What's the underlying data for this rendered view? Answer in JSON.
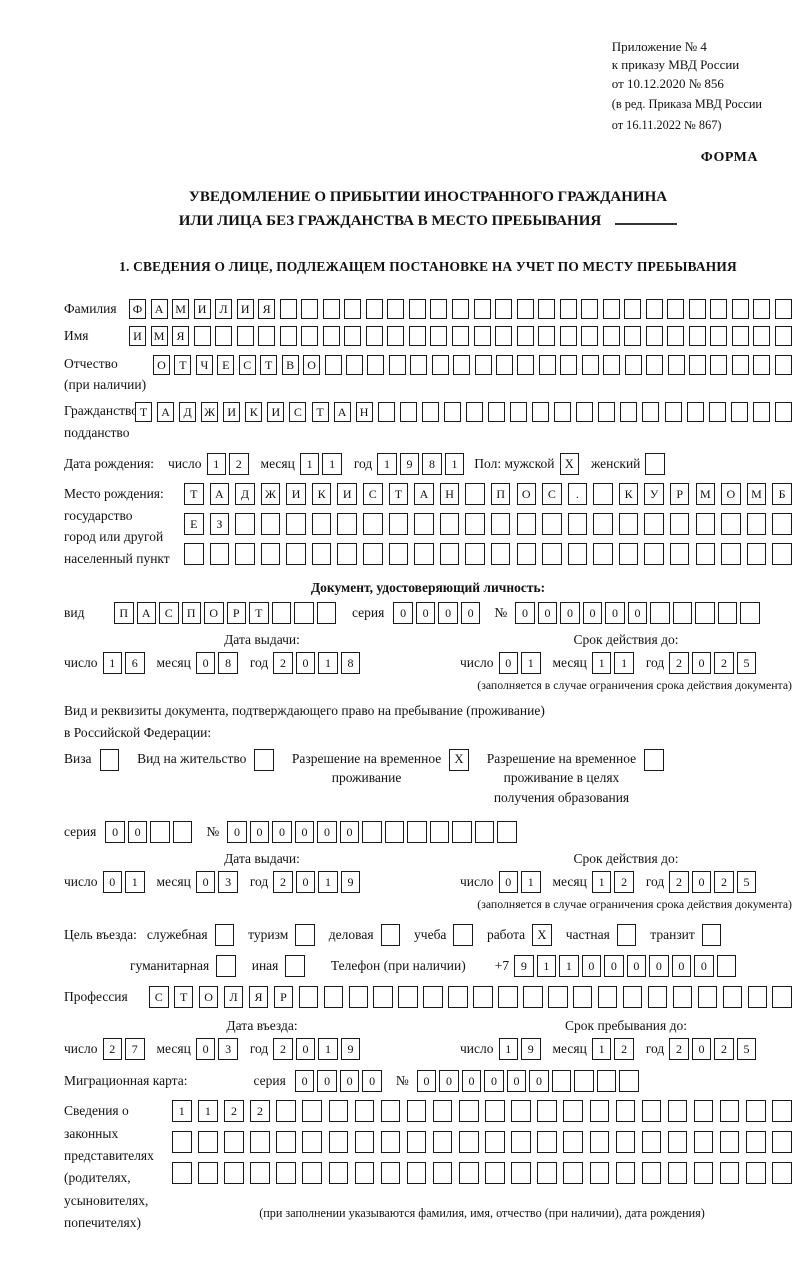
{
  "annex": {
    "lines": [
      "Приложение № 4",
      "к приказу МВД России",
      "от 10.12.2020 № 856"
    ],
    "sub_lines": [
      "(в ред. Приказа МВД России",
      "от 16.11.2022 № 867)"
    ],
    "form_label": "ФОРМА"
  },
  "title": {
    "line1": "УВЕДОМЛЕНИЕ О ПРИБЫТИИ ИНОСТРАННОГО ГРАЖДАНИНА",
    "line2": "ИЛИ ЛИЦА БЕЗ ГРАЖДАНСТВА В МЕСТО ПРЕБЫВАНИЯ"
  },
  "section1_heading": "1. СВЕДЕНИЯ О ЛИЦЕ, ПОДЛЕЖАЩЕМ ПОСТАНОВКЕ НА УЧЕТ ПО МЕСТУ ПРЕБЫВАНИЯ",
  "date_labels": {
    "day": "число",
    "month": "месяц",
    "year": "год"
  },
  "fields": {
    "surname": {
      "label": "Фамилия",
      "value": "ФАМИЛИЯ",
      "count": 31
    },
    "name": {
      "label": "Имя",
      "value": "ИМЯ",
      "count": 31
    },
    "patronymic": {
      "label": "Отчество",
      "label2": "(при наличии)",
      "value": "ОТЧЕСТВО",
      "count": 30
    },
    "citizenship": {
      "label": "Гражданство,",
      "label2": "подданство",
      "value": "ТАДЖИКИСТАН",
      "count": 30
    }
  },
  "birth_date": {
    "label": "Дата рождения:",
    "day": {
      "value": "12",
      "count": 2
    },
    "month": {
      "value": "11",
      "count": 2
    },
    "year": {
      "value": "1981",
      "count": 4
    },
    "sex_label": "Пол: мужской",
    "male_mark": "X",
    "female_label": "женский",
    "female_mark": ""
  },
  "birth_place": {
    "labels": [
      "Место рождения:",
      "государство",
      "город или другой",
      "населенный пункт"
    ],
    "row1": {
      "value": "ТАДЖИКИСТАН ПОС. КУРМОМБ",
      "count": 24
    },
    "row2": {
      "value": "ЕЗ",
      "count": 24
    },
    "row3": {
      "value": "",
      "count": 24
    }
  },
  "id_doc": {
    "heading": "Документ, удостоверяющий личность:",
    "kind_label": "вид",
    "kind": {
      "value": "ПАСПОРТ",
      "count": 10
    },
    "series_label": "серия",
    "series": {
      "value": "0000",
      "count": 4
    },
    "number_label": "№",
    "number": {
      "value": "000000",
      "count": 11
    },
    "issue_heading": "Дата выдачи:",
    "issue_day": {
      "value": "16",
      "count": 2
    },
    "issue_month": {
      "value": "08",
      "count": 2
    },
    "issue_year": {
      "value": "2018",
      "count": 4
    },
    "valid_heading": "Срок действия до:",
    "valid_day": {
      "value": "01",
      "count": 2
    },
    "valid_month": {
      "value": "11",
      "count": 2
    },
    "valid_year": {
      "value": "2025",
      "count": 4
    }
  },
  "shared": {
    "validity_footnote": "(заполняется в случае ограничения срока действия документа)"
  },
  "stay_doc": {
    "line1": "Вид и реквизиты документа, подтверждающего право на пребывание (проживание)",
    "line2": "в Российской Федерации:",
    "opt1": {
      "label": "Виза",
      "mark": ""
    },
    "opt2": {
      "label": "Вид на жительство",
      "mark": ""
    },
    "opt3": {
      "l1": "Разрешение на временное",
      "l2": "проживание",
      "mark": "X"
    },
    "opt4": {
      "l1": "Разрешение на временное",
      "l2": "проживание в целях",
      "l3": "получения образования",
      "mark": ""
    },
    "series_label": "серия",
    "series": {
      "value": "00",
      "count": 4
    },
    "number_label": "№",
    "number": {
      "value": "000000",
      "count": 13
    },
    "issue_heading": "Дата выдачи:",
    "issue_day": {
      "value": "01",
      "count": 2
    },
    "issue_month": {
      "value": "03",
      "count": 2
    },
    "issue_year": {
      "value": "2019",
      "count": 4
    },
    "valid_heading": "Срок действия до:",
    "valid_day": {
      "value": "01",
      "count": 2
    },
    "valid_month": {
      "value": "12",
      "count": 2
    },
    "valid_year": {
      "value": "2025",
      "count": 4
    }
  },
  "purpose": {
    "label": "Цель въезда:",
    "options": [
      {
        "label": "служебная",
        "mark": ""
      },
      {
        "label": "туризм",
        "mark": ""
      },
      {
        "label": "деловая",
        "mark": ""
      },
      {
        "label": "учеба",
        "mark": ""
      },
      {
        "label": "работа",
        "mark": "X"
      },
      {
        "label": "частная",
        "mark": ""
      },
      {
        "label": "транзит",
        "mark": ""
      }
    ],
    "options2": [
      {
        "label": "гуманитарная",
        "mark": ""
      },
      {
        "label": "иная",
        "mark": ""
      }
    ],
    "phone_label": "Телефон (при наличии)",
    "phone_prefix": "+7",
    "phone": {
      "value": "911000000",
      "count": 10
    }
  },
  "profession": {
    "label": "Профессия",
    "value": "СТОЛЯР",
    "count": 26
  },
  "entry_dates": {
    "issue_heading": "Дата въезда:",
    "issue_day": {
      "value": "27",
      "count": 2
    },
    "issue_month": {
      "value": "03",
      "count": 2
    },
    "issue_year": {
      "value": "2019",
      "count": 4
    },
    "valid_heading": "Срок пребывания до:",
    "valid_day": {
      "value": "19",
      "count": 2
    },
    "valid_month": {
      "value": "12",
      "count": 2
    },
    "valid_year": {
      "value": "2025",
      "count": 4
    }
  },
  "migration_card": {
    "label": "Миграционная карта:",
    "series_label": "серия",
    "series": {
      "value": "0000",
      "count": 4
    },
    "number_label": "№",
    "number": {
      "value": "000000",
      "count": 10
    }
  },
  "representatives": {
    "labels": [
      "Сведения о",
      "законных",
      "представителях",
      "(родителях,",
      "усыновителях,",
      "попечителях)"
    ],
    "row1": {
      "value": "1122",
      "count": 24
    },
    "row2": {
      "value": "",
      "count": 24
    },
    "row3": {
      "value": "",
      "count": 24
    },
    "footnote": "(при заполнении указываются фамилия, имя, отчество (при наличии), дата рождения)"
  }
}
